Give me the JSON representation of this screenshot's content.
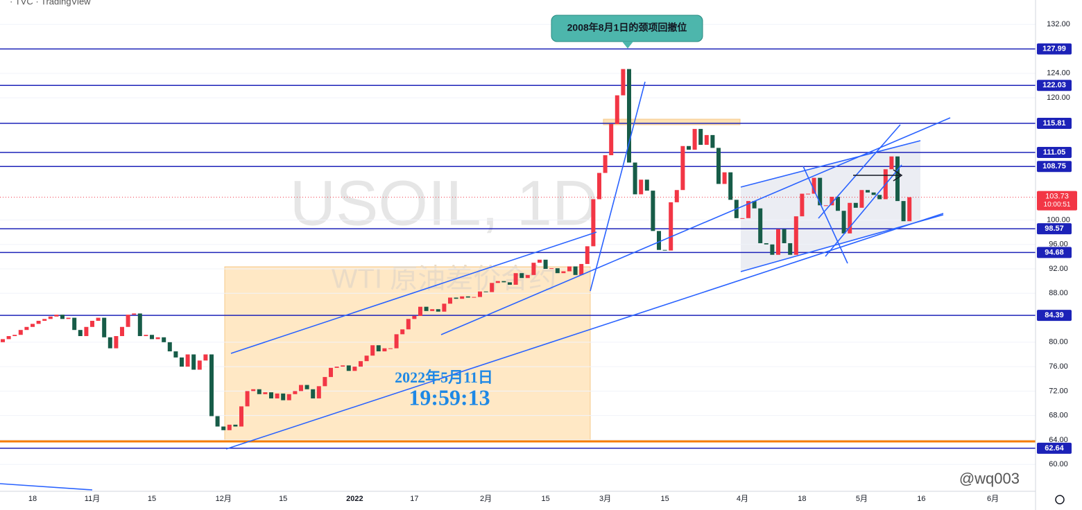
{
  "chart_data": {
    "type": "candlestick",
    "header": "· TVC · TradingView",
    "watermark": "USOIL, 1D",
    "watermark_subtitle": "WTI 原油差价合约",
    "annotation": "2008年8月1日的颈项回撤位",
    "date_note": "2022年5月11日",
    "time_note": "19:59:13",
    "credit": "@wq003",
    "up_color": "#f23645",
    "down_color": "#175c48",
    "level_color": "#1c22b8",
    "ylim": [
      55.6,
      136
    ],
    "yticks": [
      {
        "value": 60,
        "label": "60.00"
      },
      {
        "value": 64,
        "label": "64.00"
      },
      {
        "value": 68,
        "label": "68.00"
      },
      {
        "value": 72,
        "label": "72.00"
      },
      {
        "value": 76,
        "label": "76.00"
      },
      {
        "value": 80,
        "label": "80.00"
      },
      {
        "value": 88,
        "label": "88.00"
      },
      {
        "value": 92,
        "label": "92.00"
      },
      {
        "value": 96,
        "label": "96.00"
      },
      {
        "value": 100,
        "label": "100.00"
      },
      {
        "value": 120,
        "label": "120.00"
      },
      {
        "value": 124,
        "label": "124.00"
      },
      {
        "value": 132,
        "label": "132.00"
      }
    ],
    "levels": [
      127.99,
      122.03,
      115.81,
      111.05,
      108.75,
      98.57,
      94.68,
      84.39,
      62.64
    ],
    "last_price": 103.73,
    "last_time": "10:00:51",
    "categories": [
      null,
      null,
      null,
      null,
      null,
      "18",
      null,
      null,
      null,
      null,
      null,
      null,
      null,
      null,
      null,
      "11月",
      null,
      null,
      null,
      null,
      null,
      null,
      null,
      null,
      null,
      "15",
      null,
      null,
      null,
      null,
      null,
      null,
      null,
      null,
      null,
      null,
      null,
      "12月",
      null,
      null,
      null,
      null,
      null,
      null,
      null,
      null,
      null,
      "15",
      null,
      null,
      null,
      null,
      null,
      null,
      null,
      null,
      null,
      null,
      null,
      "2022",
      null,
      null,
      null,
      null,
      null,
      null,
      null,
      null,
      null,
      "17",
      null,
      null,
      null,
      null,
      null,
      null,
      null,
      null,
      null,
      null,
      null,
      "2月",
      null,
      null,
      null,
      null,
      null,
      null,
      null,
      null,
      null,
      "15",
      null,
      null,
      null,
      null,
      null,
      null,
      null,
      null,
      null,
      "3月",
      null,
      null,
      null,
      null,
      null,
      null,
      null,
      null,
      null,
      "15",
      null,
      null,
      null,
      null,
      null,
      null,
      null,
      null,
      null,
      null,
      null,
      null,
      "4月",
      null,
      null,
      null,
      null,
      null,
      null,
      null,
      null,
      null,
      "18",
      null,
      null,
      null,
      null,
      null,
      null,
      null,
      null,
      null,
      "5月",
      null,
      null,
      null,
      null,
      null,
      null,
      null,
      null,
      null,
      "16",
      null,
      null,
      null,
      null,
      null,
      null,
      null,
      null,
      null,
      null,
      null,
      "6月"
    ],
    "open": [
      80.0,
      80.5,
      81,
      81.2,
      82,
      82.5,
      83,
      83.5,
      83.8,
      84.2,
      84.5,
      83.8,
      84,
      82,
      81,
      82.5,
      83.5,
      84,
      80.8,
      79,
      81,
      82.5,
      84.5,
      84.7,
      81,
      81.2,
      80.5,
      80.8,
      80,
      78.5,
      77.5,
      76,
      78,
      75.5,
      77,
      78,
      67.9,
      66.2,
      65.6,
      66.5,
      66.2,
      69.5,
      72,
      72.3,
      71.5,
      71.8,
      70.8,
      71.6,
      70.5,
      71.5,
      72,
      73,
      72.3,
      70.8,
      72.8,
      74.3,
      75.8,
      76,
      76.2,
      75.3,
      76,
      76.9,
      77.8,
      79.5,
      78.5,
      79,
      79,
      81.3,
      82.1,
      83.8,
      84.3,
      85.8,
      85.1,
      85.4,
      85,
      86.3,
      87.3,
      87.1,
      87.5,
      87.3,
      87.4,
      88.3,
      88.2,
      89.7,
      90,
      89.8,
      89.4,
      91.3,
      90.5,
      91,
      93,
      93.5,
      92,
      92.1,
      91.3,
      91.6,
      92.4,
      91,
      92.8,
      95.7,
      103.4,
      107.7,
      110.6,
      115.7,
      120.4,
      124.7,
      109.4,
      104.2,
      106.6,
      104.8,
      98.2,
      95.1,
      95,
      102.9,
      104.9,
      112.1,
      111.5,
      114.9,
      112.3,
      113.9,
      111.8,
      105.9,
      107.8,
      103.3,
      100.3,
      100.3,
      103.1,
      101.9,
      96.2,
      96,
      94.3,
      98.5,
      96.2,
      94.3,
      100.6,
      104.3,
      104.3,
      106.9,
      102.4,
      102.4,
      103.8,
      101.5,
      97.8,
      102.8,
      102,
      104.9,
      104.5,
      104.1,
      103.4,
      108.3,
      110.4,
      103.1,
      99.8,
      null,
      null,
      null,
      null,
      null,
      null,
      null,
      null,
      null,
      null,
      null,
      null,
      null,
      null
    ],
    "close": [
      80.5,
      81,
      81.2,
      82,
      82.5,
      83,
      83.5,
      83.8,
      84.2,
      84.5,
      83.8,
      84,
      82,
      81,
      82.5,
      83.5,
      84,
      80.8,
      79,
      81,
      82.5,
      84.5,
      84.7,
      81,
      81.2,
      80.5,
      80.8,
      80,
      78.5,
      77.5,
      76,
      78,
      75.5,
      77,
      78,
      67.9,
      66.2,
      65.6,
      66.5,
      66.2,
      69.5,
      72,
      72.3,
      71.5,
      71.8,
      70.8,
      71.6,
      70.5,
      71.5,
      72,
      73,
      72.3,
      70.8,
      72.8,
      74.3,
      75.8,
      76,
      76.2,
      75.3,
      76,
      76.9,
      77.8,
      79.5,
      78.5,
      79,
      79,
      81.3,
      82.1,
      83.8,
      84.3,
      85.8,
      85.1,
      85.4,
      85,
      86.3,
      87.3,
      87.1,
      87.5,
      87.3,
      87.4,
      88.3,
      88.2,
      89.7,
      90,
      89.8,
      89.4,
      91.3,
      90.5,
      91,
      93,
      93.5,
      92,
      92.1,
      91.3,
      91.6,
      92.4,
      91,
      92.8,
      95.7,
      103.4,
      107.7,
      110.6,
      115.7,
      120.4,
      124.7,
      109.4,
      104.2,
      106.6,
      104.8,
      98.2,
      95.1,
      95,
      102.9,
      104.9,
      112.1,
      111.5,
      114.9,
      112.3,
      113.9,
      111.8,
      105.9,
      107.8,
      103.3,
      100.3,
      100.3,
      103.1,
      101.9,
      96.2,
      96,
      94.3,
      98.5,
      96.2,
      94.3,
      100.6,
      104.3,
      104.3,
      106.9,
      102.4,
      102.4,
      103.8,
      101.5,
      97.8,
      102.8,
      102,
      104.9,
      104.5,
      104.1,
      103.4,
      108.3,
      110.4,
      103.1,
      99.8,
      103.73,
      null,
      null,
      null,
      null,
      null,
      null,
      null,
      null,
      null,
      null,
      null,
      null,
      null,
      null
    ]
  }
}
